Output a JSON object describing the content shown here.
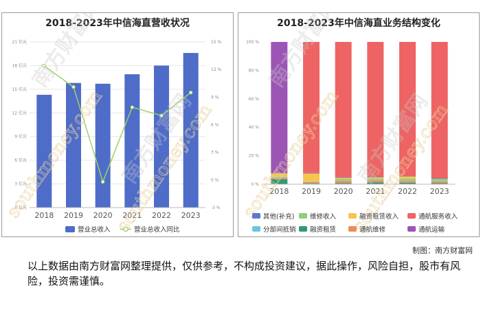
{
  "chart_data": [
    {
      "type": "bar+line",
      "title": "2018-2023年中信海直营收状况",
      "categories": [
        "2018",
        "2019",
        "2020",
        "2021",
        "2022",
        "2023"
      ],
      "series": [
        {
          "name": "营业总收入",
          "kind": "bar",
          "axis": "left",
          "values": [
            14.3,
            15.8,
            15.7,
            16.9,
            18.0,
            19.6
          ]
        },
        {
          "name": "营业总收入同比",
          "kind": "line",
          "axis": "right",
          "values": [
            12.4,
            10.1,
            -0.2,
            7.9,
            7.0,
            9.5
          ]
        }
      ],
      "y_left": {
        "min": 0,
        "max": 21,
        "ticks": [
          "0 亿元",
          "3 亿元",
          "6 亿元",
          "9 亿元",
          "12 亿元",
          "15 亿元",
          "18 亿元",
          "21 亿元"
        ]
      },
      "y_right": {
        "min": -3,
        "max": 15,
        "ticks": [
          "-3 %",
          "0 %",
          "3 %",
          "6 %",
          "9 %",
          "12 %",
          "15 %"
        ]
      },
      "colors": {
        "bar": "#4e6cc8",
        "line": "#9ed166"
      }
    },
    {
      "type": "stacked_bar_percent",
      "title": "2018-2023年中信海直业务结构变化",
      "categories": [
        "2018",
        "2019",
        "2020",
        "2021",
        "2022",
        "2023"
      ],
      "y_ticks": [
        "0 %",
        "20 %",
        "40 %",
        "60 %",
        "80 %",
        "100 %"
      ],
      "series": [
        {
          "name": "融资租赁",
          "color": "#2e9a76",
          "values": [
            3.5,
            0.5,
            0.8,
            1.2,
            1.0,
            0.8
          ]
        },
        {
          "name": "通航维修",
          "color": "#f08a5a",
          "values": [
            1.0,
            1.0,
            1.5,
            1.5,
            1.3,
            1.2
          ]
        },
        {
          "name": "分部间抵销",
          "color": "#6cc6e0",
          "values": [
            0.4,
            0.3,
            0.3,
            0.3,
            0.3,
            0.3
          ]
        },
        {
          "name": "维修收入",
          "color": "#8ccf7d",
          "values": [
            0.2,
            0.2,
            1.0,
            1.0,
            1.2,
            1.5
          ]
        },
        {
          "name": "融资租赁收入",
          "color": "#f7c54a",
          "values": [
            2.5,
            5.5,
            0.8,
            0.8,
            1.7,
            0.0
          ]
        },
        {
          "name": "其他(补充)",
          "color": "#5a78cf",
          "values": [
            0.3,
            0.3,
            0.3,
            0.3,
            0.3,
            0.3
          ]
        },
        {
          "name": "通航运输",
          "color": "#9c55b5",
          "values": [
            92.1,
            0.0,
            0.0,
            0.0,
            0.0,
            0.0
          ]
        },
        {
          "name": "通航服务收入",
          "color": "#ee6464",
          "values": [
            0.0,
            92.2,
            95.3,
            94.9,
            94.2,
            95.9
          ]
        }
      ],
      "legend_order": [
        "其他(补充)",
        "维修收入",
        "融资租赁收入",
        "通航服务收入",
        "分部间抵销",
        "融资租赁",
        "通航维修",
        "通航运输"
      ]
    }
  ],
  "watermark": {
    "text": "南方财富网",
    "latin": "southmoney.com"
  },
  "source_label": "制图：南方财富网",
  "disclaimer": "以上数据由南方财富网整理提供，仅供参考，不构成投资建议，据此操作，风险自担，股市有风险，投资需谨慎。"
}
